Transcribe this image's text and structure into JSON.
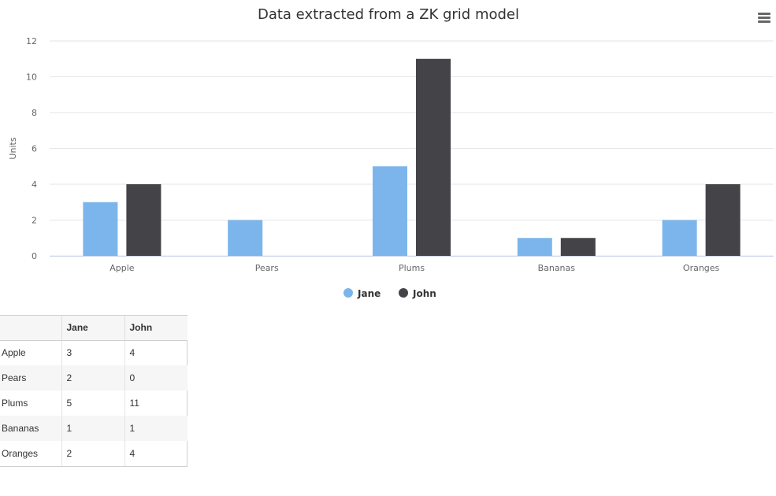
{
  "chart_data": {
    "type": "bar",
    "title": "Data extracted from a ZK grid model",
    "xlabel": "",
    "ylabel": "Units",
    "categories": [
      "Apple",
      "Pears",
      "Plums",
      "Bananas",
      "Oranges"
    ],
    "series": [
      {
        "name": "Jane",
        "values": [
          3,
          2,
          5,
          1,
          2
        ],
        "color": "#7cb5ec"
      },
      {
        "name": "John",
        "values": [
          4,
          0,
          11,
          1,
          4
        ],
        "color": "#434348"
      }
    ],
    "ylim": [
      0,
      12
    ],
    "yticks": [
      0,
      2,
      4,
      6,
      8,
      10,
      12
    ],
    "grid": true,
    "legend_position": "bottom-center"
  },
  "menu": {
    "icon": "hamburger-menu-icon"
  },
  "grid": {
    "columns": [
      "",
      "Jane",
      "John"
    ],
    "rows": [
      {
        "label": "Apple",
        "jane": "3",
        "john": "4"
      },
      {
        "label": "Pears",
        "jane": "2",
        "john": "0"
      },
      {
        "label": "Plums",
        "jane": "5",
        "john": "11"
      },
      {
        "label": "Bananas",
        "jane": "1",
        "john": "1"
      },
      {
        "label": "Oranges",
        "jane": "2",
        "john": "4"
      }
    ]
  }
}
